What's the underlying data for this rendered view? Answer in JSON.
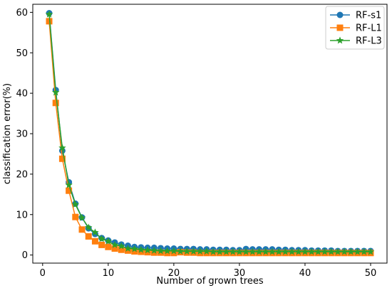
{
  "chart_data": {
    "type": "line",
    "title": "",
    "xlabel": "Number of grown trees",
    "ylabel": "classification error(%)",
    "xlim": [
      -1.5,
      52.5
    ],
    "ylim": [
      -2,
      62
    ],
    "xticks": [
      0,
      10,
      20,
      30,
      40,
      50
    ],
    "yticks": [
      0,
      10,
      20,
      30,
      40,
      50,
      60
    ],
    "grid": false,
    "legend_position": "top-right",
    "x": [
      1,
      2,
      3,
      4,
      5,
      6,
      7,
      8,
      9,
      10,
      11,
      12,
      13,
      14,
      15,
      16,
      17,
      18,
      19,
      20,
      21,
      22,
      23,
      24,
      25,
      26,
      27,
      28,
      29,
      30,
      31,
      32,
      33,
      34,
      35,
      36,
      37,
      38,
      39,
      40,
      41,
      42,
      43,
      44,
      45,
      46,
      47,
      48,
      49,
      50
    ],
    "series": [
      {
        "name": "RF-s1",
        "color": "#1f77b4",
        "marker": "circle",
        "values": [
          59.8,
          40.8,
          25.8,
          18.0,
          12.7,
          9.3,
          6.6,
          5.2,
          4.2,
          3.6,
          3.1,
          2.6,
          2.3,
          2.0,
          1.9,
          1.8,
          1.8,
          1.7,
          1.6,
          1.6,
          1.5,
          1.5,
          1.5,
          1.4,
          1.4,
          1.3,
          1.3,
          1.3,
          1.2,
          1.2,
          1.5,
          1.4,
          1.4,
          1.4,
          1.4,
          1.3,
          1.3,
          1.2,
          1.2,
          1.2,
          1.1,
          1.1,
          1.1,
          1.1,
          1.0,
          1.0,
          1.0,
          1.0,
          1.0,
          1.0
        ]
      },
      {
        "name": "RF-L1",
        "color": "#ff7f0e",
        "marker": "square",
        "values": [
          57.8,
          37.6,
          23.8,
          15.9,
          9.4,
          6.3,
          4.6,
          3.4,
          2.5,
          2.0,
          1.6,
          1.3,
          1.1,
          0.9,
          0.8,
          0.7,
          0.6,
          0.6,
          0.5,
          0.5,
          0.7,
          0.6,
          0.6,
          0.5,
          0.5,
          0.5,
          0.5,
          0.5,
          0.5,
          0.5,
          0.5,
          0.5,
          0.5,
          0.5,
          0.5,
          0.5,
          0.5,
          0.5,
          0.5,
          0.5,
          0.5,
          0.5,
          0.5,
          0.5,
          0.5,
          0.5,
          0.5,
          0.5,
          0.5,
          0.5
        ]
      },
      {
        "name": "RF-L3",
        "color": "#2ca02c",
        "marker": "star",
        "values": [
          59.5,
          40.2,
          26.5,
          17.3,
          12.5,
          9.2,
          6.8,
          5.6,
          4.0,
          3.4,
          2.5,
          2.2,
          1.6,
          1.5,
          1.3,
          1.2,
          1.1,
          1.0,
          1.0,
          1.0,
          0.9,
          0.9,
          0.9,
          0.9,
          0.9,
          0.8,
          0.8,
          0.8,
          0.8,
          0.8,
          0.8,
          0.8,
          0.8,
          0.8,
          0.8,
          0.8,
          0.8,
          0.8,
          0.8,
          0.8,
          0.8,
          0.8,
          0.8,
          0.8,
          0.8,
          0.8,
          0.8,
          0.8,
          0.8,
          0.8
        ]
      }
    ]
  }
}
